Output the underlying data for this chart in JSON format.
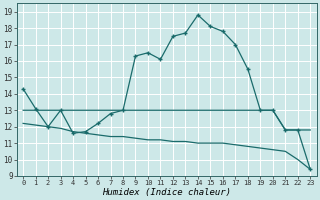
{
  "xlabel": "Humidex (Indice chaleur)",
  "xlim": [
    -0.5,
    23.5
  ],
  "ylim": [
    9,
    19.5
  ],
  "yticks": [
    9,
    10,
    11,
    12,
    13,
    14,
    15,
    16,
    17,
    18,
    19
  ],
  "xticks": [
    0,
    1,
    2,
    3,
    4,
    5,
    6,
    7,
    8,
    9,
    10,
    11,
    12,
    13,
    14,
    15,
    16,
    17,
    18,
    19,
    20,
    21,
    22,
    23
  ],
  "bg_color": "#cde8e8",
  "grid_color": "#b0d8d8",
  "line_color": "#1a6b6b",
  "main_line_x": [
    0,
    1,
    2,
    3,
    4,
    5,
    6,
    7,
    8,
    9,
    10,
    11,
    12,
    13,
    14,
    15,
    16,
    17,
    18,
    19,
    20,
    21,
    22,
    23
  ],
  "main_line_y": [
    14.3,
    13.1,
    12.0,
    13.0,
    11.6,
    11.7,
    12.2,
    12.8,
    13.0,
    16.3,
    16.5,
    16.1,
    17.5,
    17.7,
    18.8,
    18.1,
    17.8,
    17.0,
    15.5,
    13.0,
    13.0,
    11.8,
    11.8,
    9.4
  ],
  "upper_flat_x": [
    0,
    1,
    2,
    3,
    4,
    5,
    6,
    7,
    8,
    9,
    10,
    11,
    12,
    13,
    14,
    15,
    16,
    17,
    18,
    19,
    20,
    21,
    22,
    23
  ],
  "upper_flat_y": [
    13.0,
    13.0,
    13.0,
    13.0,
    13.0,
    13.0,
    13.0,
    13.0,
    13.0,
    13.0,
    13.0,
    13.0,
    13.0,
    13.0,
    13.0,
    13.0,
    13.0,
    13.0,
    13.0,
    13.0,
    13.0,
    11.8,
    11.8,
    11.8
  ],
  "lower_flat_x": [
    0,
    1,
    2,
    3,
    4,
    5,
    6,
    7,
    8,
    9,
    10,
    11,
    12,
    13,
    14,
    15,
    16,
    17,
    18,
    19,
    20,
    21,
    22,
    23
  ],
  "lower_flat_y": [
    12.2,
    12.1,
    12.0,
    11.9,
    11.7,
    11.6,
    11.5,
    11.4,
    11.4,
    11.3,
    11.2,
    11.2,
    11.1,
    11.1,
    11.0,
    11.0,
    11.0,
    10.9,
    10.8,
    10.7,
    10.6,
    10.5,
    10.0,
    9.4
  ]
}
